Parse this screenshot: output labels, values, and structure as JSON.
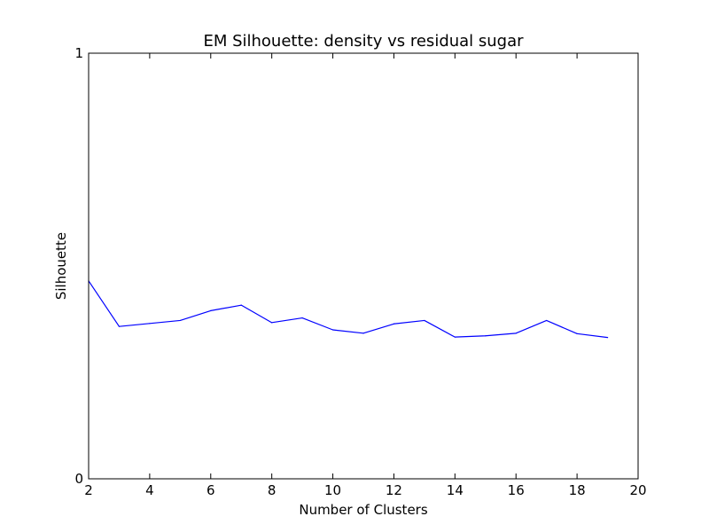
{
  "chart_data": {
    "type": "line",
    "title": "EM Silhouette: density vs residual sugar",
    "xlabel": "Number of Clusters",
    "ylabel": "Silhouette",
    "xlim": [
      2,
      20
    ],
    "ylim": [
      0,
      1
    ],
    "x_ticks": [
      2,
      4,
      6,
      8,
      10,
      12,
      14,
      16,
      18,
      20
    ],
    "y_ticks": [
      0,
      1
    ],
    "grid": false,
    "series": [
      {
        "color": "#0000ff",
        "x": [
          2,
          3,
          4,
          5,
          6,
          7,
          8,
          9,
          10,
          11,
          12,
          13,
          14,
          15,
          16,
          17,
          18,
          19
        ],
        "y": [
          0.465,
          0.358,
          0.365,
          0.372,
          0.395,
          0.408,
          0.367,
          0.378,
          0.35,
          0.342,
          0.364,
          0.372,
          0.333,
          0.336,
          0.342,
          0.372,
          0.341,
          0.332
        ]
      }
    ]
  }
}
